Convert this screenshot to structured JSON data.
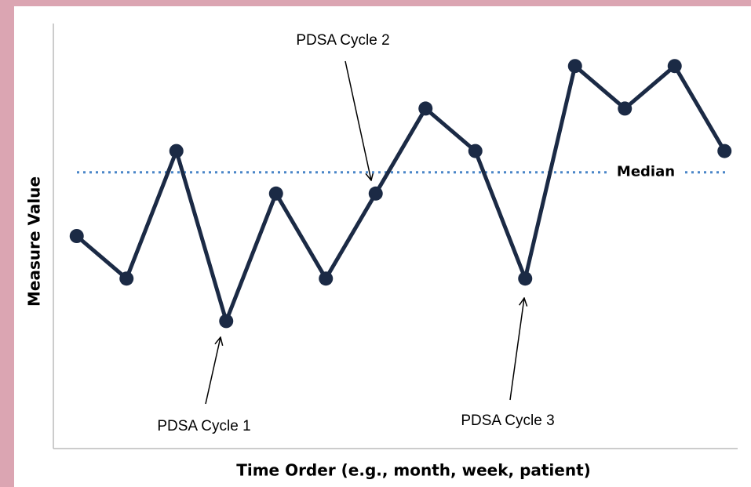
{
  "chart_data": {
    "type": "line",
    "x_label": "Time Order (e.g., month, week, patient)",
    "y_label": "Measure Value",
    "categories": [
      null,
      null,
      null,
      null,
      null,
      null,
      null,
      null,
      null,
      null,
      null,
      null,
      null,
      null
    ],
    "values": [
      5,
      4,
      7,
      3,
      6,
      4,
      6,
      8,
      7,
      4,
      9,
      8,
      9,
      7
    ],
    "color": "#1b2a45",
    "ylim": [
      0,
      10
    ],
    "median": 6.5,
    "median_label": "Median",
    "median_color": "#4a86c8",
    "annotations": [
      "PDSA Cycle 1",
      "PDSA Cycle 2",
      "PDSA Cycle 3"
    ]
  }
}
